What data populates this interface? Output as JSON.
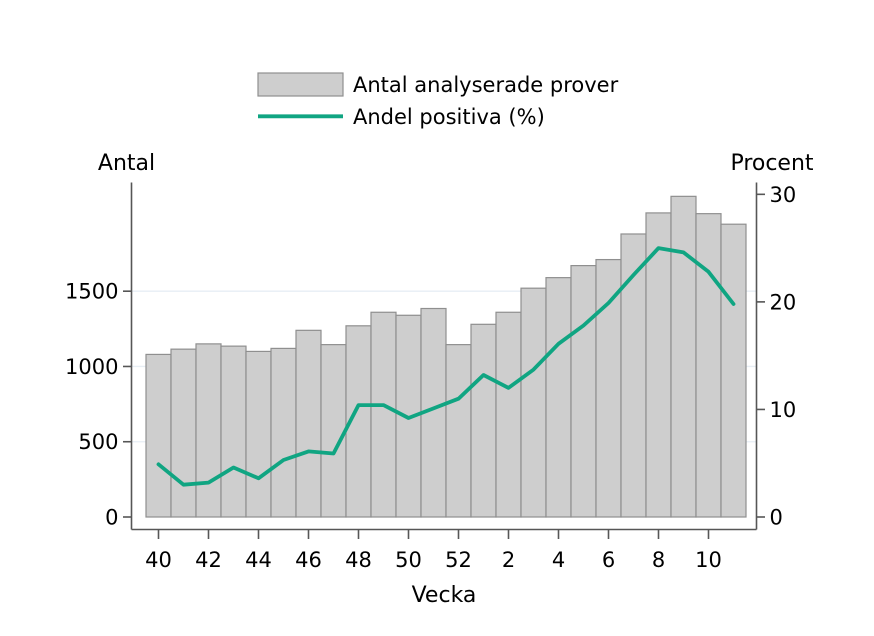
{
  "figure": {
    "background": "#ffffff"
  },
  "legend": {
    "items": [
      {
        "label": "Antal analyserade prover",
        "type": "bar-swatch"
      },
      {
        "label": "Andel positiva (%)",
        "type": "line-swatch"
      }
    ]
  },
  "axes": {
    "left": {
      "title": "Antal",
      "tick_labels": [
        "0",
        "500",
        "1000",
        "1500"
      ],
      "tick_values": [
        0,
        500,
        1000,
        1500
      ]
    },
    "right": {
      "title": "Procent",
      "tick_labels": [
        "0",
        "10",
        "20",
        "30"
      ],
      "tick_values": [
        0,
        10,
        20,
        30
      ]
    },
    "x": {
      "title": "Vecka",
      "labeled_weeks": [
        "40",
        "42",
        "44",
        "46",
        "48",
        "50",
        "52",
        "2",
        "4",
        "6",
        "8",
        "10"
      ]
    }
  },
  "chart_data": {
    "type": "bar",
    "subtype": "combo-bar-line-dual-axis",
    "title": "",
    "xlabel": "Vecka",
    "ylabel_left": "Antal",
    "ylabel_right": "Procent",
    "categories": [
      "40",
      "41",
      "42",
      "43",
      "44",
      "45",
      "46",
      "47",
      "48",
      "49",
      "50",
      "51",
      "52",
      "1",
      "2",
      "3",
      "4",
      "5",
      "6",
      "7",
      "8",
      "9",
      "10",
      "11"
    ],
    "series": [
      {
        "name": "Antal analyserade prover",
        "type": "bar",
        "axis": "left",
        "values": [
          1080,
          1115,
          1150,
          1135,
          1100,
          1120,
          1240,
          1145,
          1270,
          1360,
          1340,
          1385,
          1145,
          1280,
          1360,
          1520,
          1590,
          1670,
          1710,
          1880,
          2020,
          2130,
          2015,
          1945
        ]
      },
      {
        "name": "Andel positiva (%)",
        "type": "line",
        "axis": "right",
        "values": [
          4.9,
          3.0,
          3.2,
          4.6,
          3.6,
          5.3,
          6.1,
          5.9,
          10.4,
          10.4,
          9.2,
          10.1,
          11.0,
          13.2,
          12.0,
          13.7,
          16.1,
          17.8,
          19.9,
          22.5,
          25.0,
          24.6,
          22.8,
          19.8
        ]
      }
    ],
    "ylim_left": [
      0,
      2222
    ],
    "ylim_right": [
      0,
      31.1
    ],
    "grid": {
      "left_values": [
        500,
        1000,
        1500
      ]
    },
    "legend_position": "top-center"
  },
  "colors": {
    "axis": "#565656",
    "text": "#000000",
    "gridline": "#e7eef4",
    "bar_fill": "#cecece",
    "bar_border": "#8f8f8f",
    "line": "#10a582",
    "background": "#ffffff"
  }
}
